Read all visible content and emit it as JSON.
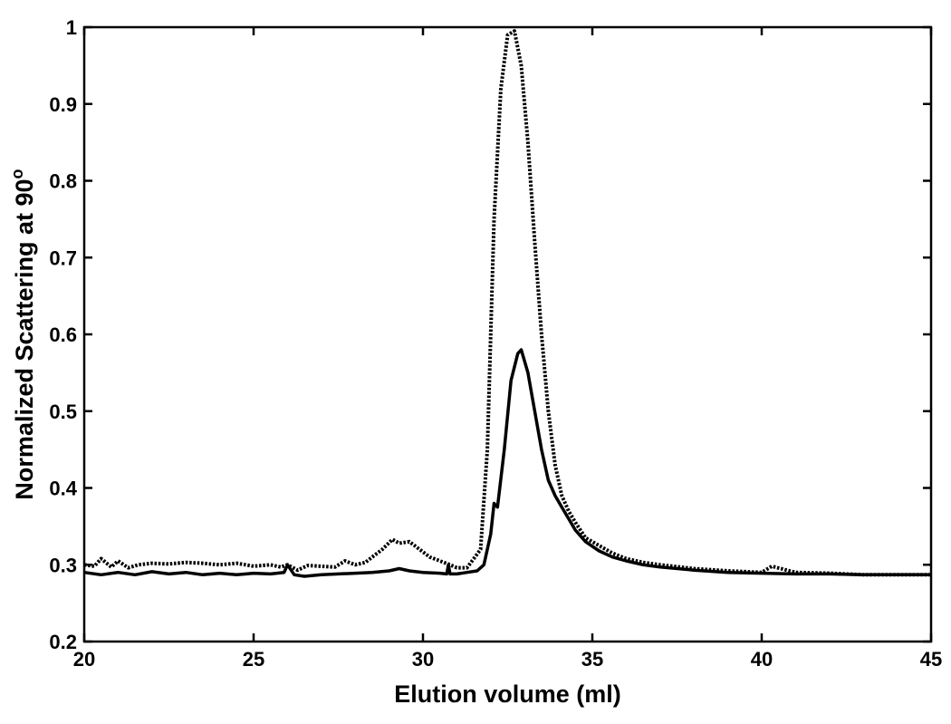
{
  "chart_data": {
    "type": "line",
    "title": "",
    "xlabel": "Elution volume  (ml)",
    "ylabel_main": "Normalized Scattering at 90",
    "ylabel_sup": "o",
    "xlim": [
      20,
      45
    ],
    "ylim": [
      0.2,
      1.0
    ],
    "xticks": [
      20,
      25,
      30,
      35,
      40,
      45
    ],
    "xtick_labels": [
      "20",
      "25",
      "30",
      "35",
      "40",
      "45"
    ],
    "yticks": [
      0.2,
      0.3,
      0.4,
      0.5,
      0.6,
      0.7,
      0.8,
      0.9,
      1.0
    ],
    "ytick_labels": [
      "0.2",
      "0.3",
      "0.4",
      "0.5",
      "0.6",
      "0.7",
      "0.8",
      "0.9",
      "1"
    ],
    "grid": false,
    "legend": "none",
    "series": [
      {
        "style": "dotted",
        "color": "#000000",
        "x": [
          20.0,
          20.3,
          20.5,
          20.8,
          21.0,
          21.3,
          21.6,
          22.0,
          22.5,
          23.0,
          23.5,
          24.0,
          24.5,
          25.0,
          25.5,
          25.8,
          26.0,
          26.3,
          26.6,
          27.0,
          27.4,
          27.7,
          28.0,
          28.3,
          28.5,
          28.8,
          29.1,
          29.3,
          29.6,
          29.9,
          30.2,
          30.5,
          30.8,
          31.0,
          31.3,
          31.5,
          31.7,
          31.9,
          32.1,
          32.3,
          32.5,
          32.7,
          32.9,
          33.1,
          33.3,
          33.5,
          33.7,
          33.9,
          34.1,
          34.3,
          34.5,
          34.8,
          35.2,
          35.6,
          36.0,
          36.5,
          37.0,
          38.0,
          39.0,
          40.0,
          40.3,
          41.0,
          42.0,
          43.0,
          44.0,
          45.0
        ],
        "y": [
          0.3,
          0.298,
          0.308,
          0.297,
          0.305,
          0.296,
          0.3,
          0.302,
          0.301,
          0.303,
          0.302,
          0.3,
          0.302,
          0.298,
          0.3,
          0.297,
          0.3,
          0.293,
          0.299,
          0.298,
          0.297,
          0.305,
          0.3,
          0.303,
          0.31,
          0.32,
          0.333,
          0.328,
          0.33,
          0.32,
          0.31,
          0.305,
          0.3,
          0.296,
          0.296,
          0.308,
          0.32,
          0.45,
          0.75,
          0.92,
          0.99,
          0.995,
          0.95,
          0.85,
          0.72,
          0.6,
          0.5,
          0.43,
          0.39,
          0.37,
          0.355,
          0.335,
          0.325,
          0.315,
          0.308,
          0.303,
          0.3,
          0.295,
          0.292,
          0.29,
          0.298,
          0.29,
          0.289,
          0.287,
          0.287,
          0.287
        ]
      },
      {
        "style": "solid",
        "color": "#000000",
        "x": [
          20.0,
          20.5,
          21.0,
          21.5,
          22.0,
          22.5,
          23.0,
          23.5,
          24.0,
          24.5,
          25.0,
          25.5,
          25.9,
          26.0,
          26.2,
          26.5,
          27.0,
          27.5,
          28.0,
          28.5,
          29.0,
          29.3,
          29.6,
          30.0,
          30.5,
          30.7,
          30.75,
          30.8,
          31.0,
          31.3,
          31.6,
          31.8,
          32.0,
          32.1,
          32.2,
          32.4,
          32.6,
          32.8,
          32.9,
          33.1,
          33.3,
          33.5,
          33.7,
          33.9,
          34.1,
          34.3,
          34.5,
          34.8,
          35.2,
          35.6,
          36.0,
          36.5,
          37.0,
          38.0,
          39.0,
          40.0,
          41.0,
          42.0,
          43.0,
          44.0,
          45.0
        ],
        "y": [
          0.29,
          0.287,
          0.29,
          0.287,
          0.291,
          0.288,
          0.29,
          0.287,
          0.289,
          0.287,
          0.289,
          0.288,
          0.29,
          0.3,
          0.287,
          0.285,
          0.287,
          0.288,
          0.289,
          0.29,
          0.292,
          0.295,
          0.292,
          0.29,
          0.289,
          0.288,
          0.3,
          0.288,
          0.288,
          0.29,
          0.292,
          0.3,
          0.34,
          0.38,
          0.375,
          0.45,
          0.54,
          0.575,
          0.58,
          0.55,
          0.5,
          0.45,
          0.41,
          0.39,
          0.375,
          0.36,
          0.345,
          0.33,
          0.318,
          0.31,
          0.305,
          0.3,
          0.297,
          0.293,
          0.29,
          0.289,
          0.288,
          0.288,
          0.287,
          0.287,
          0.287
        ]
      }
    ]
  }
}
